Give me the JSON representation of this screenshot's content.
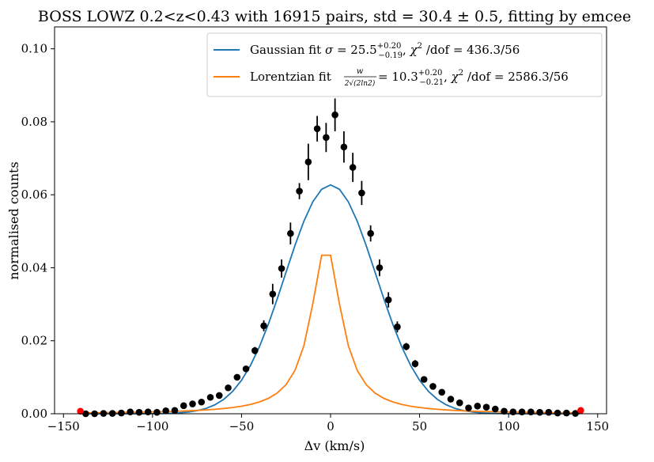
{
  "chart_data": {
    "type": "scatter",
    "title": "BOSS LOWZ 0.2<z<0.43 with 16915 pairs, std = 30.4 ± 0.5, fitting by emcee",
    "xlabel": "Δv (km/s)",
    "ylabel": "normalised counts",
    "xlim": [
      -155,
      155
    ],
    "ylim": [
      0,
      0.106
    ],
    "xticks": [
      -150,
      -100,
      -50,
      0,
      50,
      100,
      150
    ],
    "xtick_labels": [
      "−150",
      "−100",
      "−50",
      "0",
      "50",
      "100",
      "150"
    ],
    "yticks": [
      0,
      0.02,
      0.04,
      0.06,
      0.08,
      0.1
    ],
    "ytick_labels": [
      "0.00",
      "0.02",
      "0.04",
      "0.06",
      "0.08",
      "0.10"
    ],
    "grid": false,
    "legend_position": "top-right",
    "colors": {
      "gaussian": "#1f77b4",
      "lorentzian": "#ff7f0e",
      "points": "#000000",
      "edge_points": "#ff0000"
    },
    "data_points": [
      {
        "x": -137.5,
        "y": 0.0,
        "err": 0.0003
      },
      {
        "x": -132.5,
        "y": 0.0,
        "err": 0.0003
      },
      {
        "x": -127.5,
        "y": 0.0001,
        "err": 0.0003
      },
      {
        "x": -122.5,
        "y": 0.0001,
        "err": 0.0003
      },
      {
        "x": -117.5,
        "y": 0.0002,
        "err": 0.0003
      },
      {
        "x": -112.5,
        "y": 0.0005,
        "err": 0.0003
      },
      {
        "x": -107.5,
        "y": 0.0004,
        "err": 0.0003
      },
      {
        "x": -102.5,
        "y": 0.0005,
        "err": 0.0003
      },
      {
        "x": -97.5,
        "y": 0.0004,
        "err": 0.0003
      },
      {
        "x": -92.5,
        "y": 0.0008,
        "err": 0.0003
      },
      {
        "x": -87.5,
        "y": 0.0009,
        "err": 0.0003
      },
      {
        "x": -82.5,
        "y": 0.0022,
        "err": 0.0004
      },
      {
        "x": -77.5,
        "y": 0.0027,
        "err": 0.0004
      },
      {
        "x": -72.5,
        "y": 0.0032,
        "err": 0.0004
      },
      {
        "x": -67.5,
        "y": 0.0045,
        "err": 0.0005
      },
      {
        "x": -62.5,
        "y": 0.005,
        "err": 0.0005
      },
      {
        "x": -57.5,
        "y": 0.0071,
        "err": 0.0006
      },
      {
        "x": -52.5,
        "y": 0.01,
        "err": 0.0007
      },
      {
        "x": -47.5,
        "y": 0.0123,
        "err": 0.0008
      },
      {
        "x": -42.5,
        "y": 0.0173,
        "err": 0.001
      },
      {
        "x": -37.5,
        "y": 0.0241,
        "err": 0.0015
      },
      {
        "x": -32.5,
        "y": 0.0328,
        "err": 0.0028
      },
      {
        "x": -27.5,
        "y": 0.0398,
        "err": 0.0025
      },
      {
        "x": -22.5,
        "y": 0.0494,
        "err": 0.003
      },
      {
        "x": -17.5,
        "y": 0.061,
        "err": 0.0022
      },
      {
        "x": -12.5,
        "y": 0.069,
        "err": 0.005
      },
      {
        "x": -7.5,
        "y": 0.0781,
        "err": 0.0035
      },
      {
        "x": -2.5,
        "y": 0.0757,
        "err": 0.004
      },
      {
        "x": 2.5,
        "y": 0.0819,
        "err": 0.0045
      },
      {
        "x": 7.5,
        "y": 0.0731,
        "err": 0.0043
      },
      {
        "x": 12.5,
        "y": 0.0675,
        "err": 0.004
      },
      {
        "x": 17.5,
        "y": 0.0605,
        "err": 0.0033
      },
      {
        "x": 22.5,
        "y": 0.0494,
        "err": 0.0022
      },
      {
        "x": 27.5,
        "y": 0.04,
        "err": 0.0023
      },
      {
        "x": 32.5,
        "y": 0.0312,
        "err": 0.0021
      },
      {
        "x": 37.5,
        "y": 0.0238,
        "err": 0.0015
      },
      {
        "x": 42.5,
        "y": 0.0184,
        "err": 0.001
      },
      {
        "x": 47.5,
        "y": 0.0137,
        "err": 0.001
      },
      {
        "x": 52.5,
        "y": 0.0094,
        "err": 0.0007
      },
      {
        "x": 57.5,
        "y": 0.0075,
        "err": 0.0006
      },
      {
        "x": 62.5,
        "y": 0.0059,
        "err": 0.0005
      },
      {
        "x": 67.5,
        "y": 0.004,
        "err": 0.0004
      },
      {
        "x": 72.5,
        "y": 0.003,
        "err": 0.0004
      },
      {
        "x": 77.5,
        "y": 0.0016,
        "err": 0.0003
      },
      {
        "x": 82.5,
        "y": 0.0021,
        "err": 0.0004
      },
      {
        "x": 87.5,
        "y": 0.0018,
        "err": 0.0003
      },
      {
        "x": 92.5,
        "y": 0.0013,
        "err": 0.0003
      },
      {
        "x": 97.5,
        "y": 0.0007,
        "err": 0.0003
      },
      {
        "x": 102.5,
        "y": 0.0005,
        "err": 0.0003
      },
      {
        "x": 107.5,
        "y": 0.0005,
        "err": 0.0003
      },
      {
        "x": 112.5,
        "y": 0.0005,
        "err": 0.0003
      },
      {
        "x": 117.5,
        "y": 0.0004,
        "err": 0.0003
      },
      {
        "x": 122.5,
        "y": 0.0004,
        "err": 0.0003
      },
      {
        "x": 127.5,
        "y": 0.0002,
        "err": 0.0003
      },
      {
        "x": 132.5,
        "y": 0.0002,
        "err": 0.0003
      },
      {
        "x": 137.5,
        "y": 0.0001,
        "err": 0.0003
      }
    ],
    "edge_points": [
      {
        "x": -140.5,
        "y": 0.0007
      },
      {
        "x": 140.5,
        "y": 0.0009
      }
    ],
    "series": [
      {
        "name": "Gaussian fit σ=25.5 (+0.20/−0.19), χ² /dof = 436.3/56",
        "legend": {
          "prefix": "Gaussian fit ",
          "sym": "σ",
          "eq": " = 25.5",
          "sup": "+0.20",
          "sub": "−0.19",
          "sep": ", ",
          "chi": "χ",
          "two": "2",
          "tail": " /dof = 436.3/56"
        },
        "curve": {
          "model": "gaussian",
          "amplitude": 0.0627,
          "center": 0,
          "sigma": 25.5
        },
        "x_range": [
          -140,
          140
        ]
      },
      {
        "name": "Lorentzian fit w/(2√(2ln2)) = 10.3 (+0.20/−0.21), χ² /dof = 2586.3/56",
        "legend": {
          "prefix": "Lorentzian fit ",
          "frac_num": "w",
          "frac_den": "2√(2ln2)",
          "eq": " = 10.3",
          "sup": "+0.20",
          "sub": "−0.21",
          "sep": ", ",
          "chi": "χ",
          "two": "2",
          "tail": " /dof = 2586.3/56"
        },
        "curve": {
          "model": "lorentzian",
          "amplitude": 0.046,
          "center": -2.5,
          "gamma": 10.3
        },
        "x_range": [
          -140,
          140
        ]
      }
    ]
  }
}
